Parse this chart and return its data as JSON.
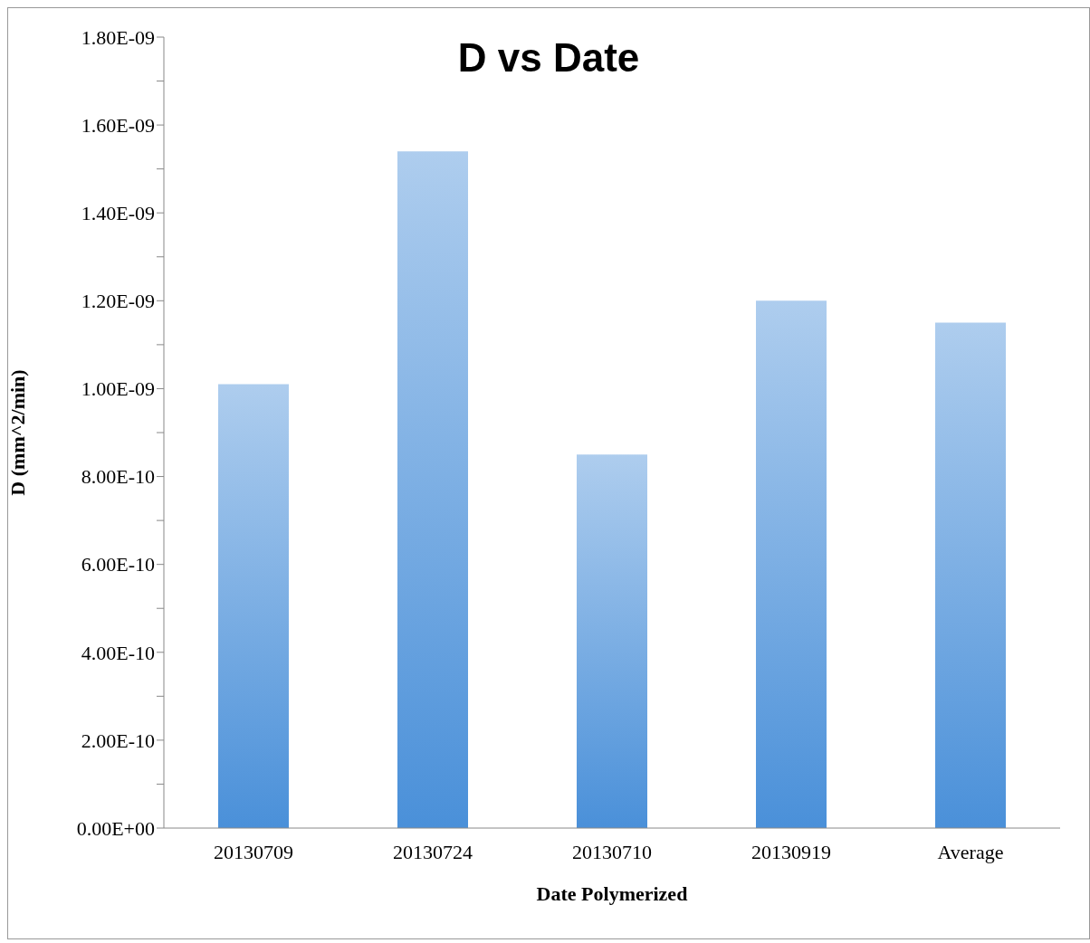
{
  "chart_data": {
    "type": "bar",
    "title": "D vs Date",
    "xlabel": "Date Polymerized",
    "ylabel": "D (mm^2/min)",
    "categories": [
      "20130709",
      "20130724",
      "20130710",
      "20130919",
      "Average"
    ],
    "values": [
      1.01e-09,
      1.54e-09,
      8.5e-10,
      1.2e-09,
      1.15e-09
    ],
    "color": "#4a90d9",
    "ylim": [
      0,
      1.8e-09
    ],
    "yticks": [
      {
        "value": 0,
        "label": "0.00E+00"
      },
      {
        "value": 1e-10,
        "label": null
      },
      {
        "value": 2e-10,
        "label": "2.00E-10"
      },
      {
        "value": 3e-10,
        "label": null
      },
      {
        "value": 4e-10,
        "label": "4.00E-10"
      },
      {
        "value": 5e-10,
        "label": null
      },
      {
        "value": 6e-10,
        "label": "6.00E-10"
      },
      {
        "value": 7e-10,
        "label": null
      },
      {
        "value": 8e-10,
        "label": "8.00E-10"
      },
      {
        "value": 9e-10,
        "label": null
      },
      {
        "value": 1e-09,
        "label": "1.00E-09"
      },
      {
        "value": 1.1e-09,
        "label": null
      },
      {
        "value": 1.2e-09,
        "label": "1.20E-09"
      },
      {
        "value": 1.3e-09,
        "label": null
      },
      {
        "value": 1.4e-09,
        "label": "1.40E-09"
      },
      {
        "value": 1.5e-09,
        "label": null
      },
      {
        "value": 1.6e-09,
        "label": "1.60E-09"
      },
      {
        "value": 1.7e-09,
        "label": null
      },
      {
        "value": 1.8e-09,
        "label": "1.80E-09"
      }
    ],
    "grid": false,
    "legend": false
  }
}
